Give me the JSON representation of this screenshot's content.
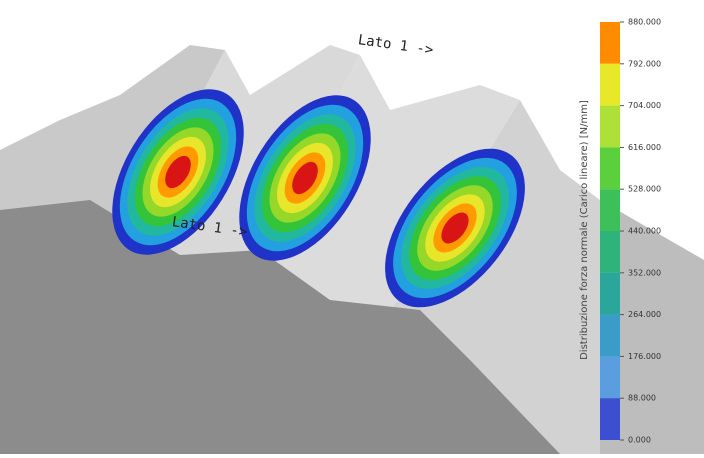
{
  "annotations": [
    "Lato 1 ->",
    "Lato 1 ->"
  ],
  "colorbar": {
    "title": "Distribuzione forza normale (Carico lineare) [N/mm]",
    "ticks": [
      {
        "value": 880,
        "label": "880.000"
      },
      {
        "value": 792,
        "label": "792.000"
      },
      {
        "value": 704,
        "label": "704.000"
      },
      {
        "value": 616,
        "label": "616.000"
      },
      {
        "value": 528,
        "label": "528.000"
      },
      {
        "value": 440,
        "label": "440.000"
      },
      {
        "value": 352,
        "label": "352.000"
      },
      {
        "value": 264,
        "label": "264.000"
      },
      {
        "value": 176,
        "label": "176.000"
      },
      {
        "value": 88,
        "label": "88.000"
      },
      {
        "value": 0,
        "label": "0.000"
      }
    ],
    "colors": [
      "#ff8c00",
      "#e8e82a",
      "#aee03a",
      "#5ccf3c",
      "#3dbf5a",
      "#2eb37a",
      "#2aa79a",
      "#3a9cc8",
      "#5a9ee0",
      "#3b4fd0"
    ]
  }
}
